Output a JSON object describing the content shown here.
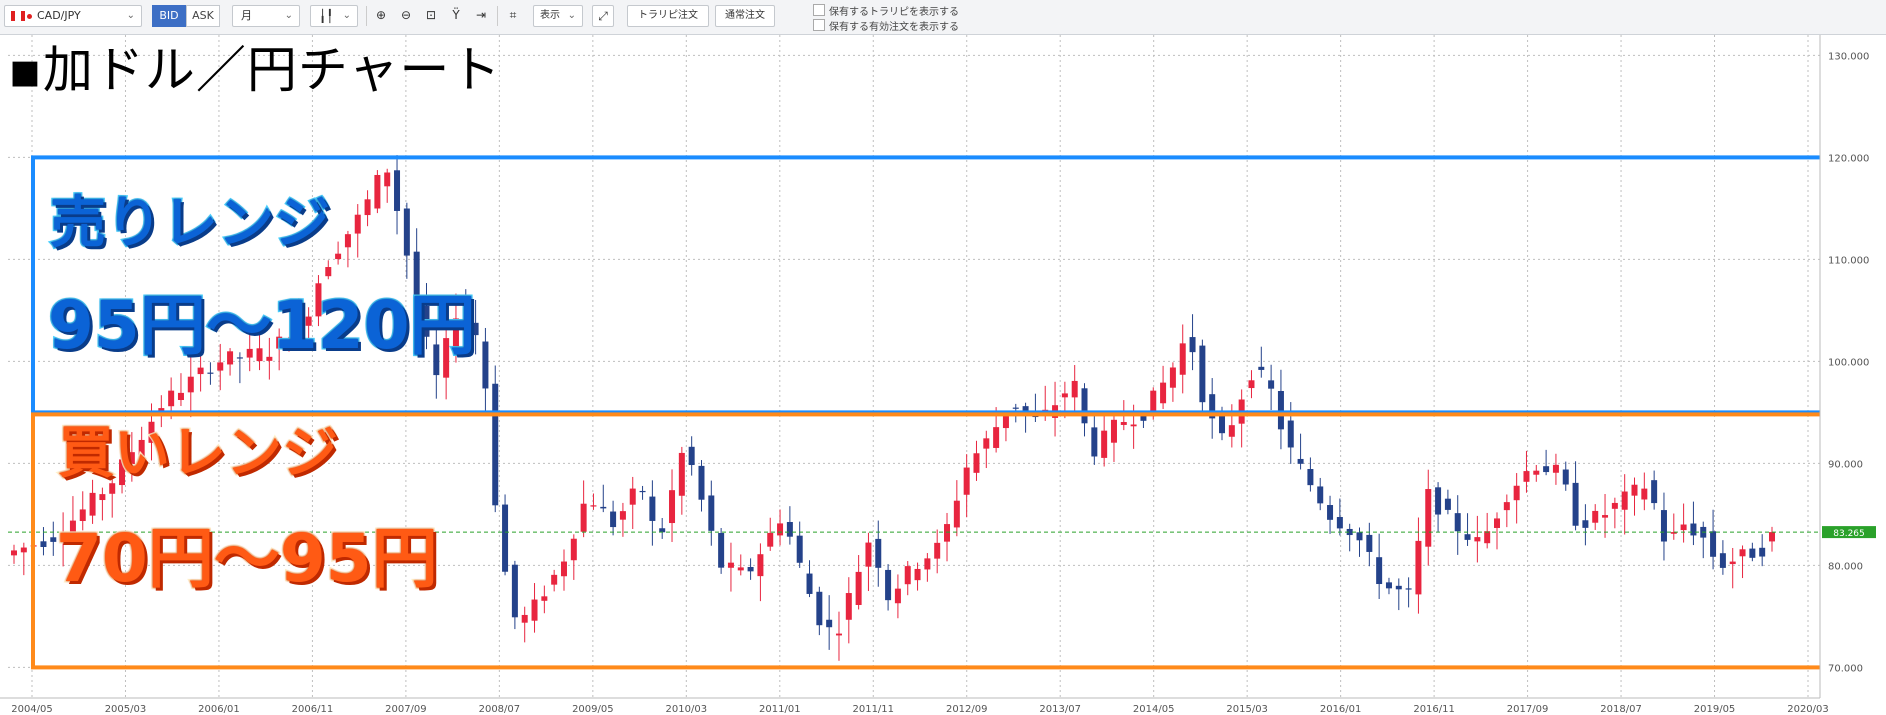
{
  "toolbar": {
    "pair": "CAD/JPY",
    "bid": "BID",
    "ask": "ASK",
    "timeframe": "月",
    "display": "表示",
    "trapi_order": "トラリピ注文",
    "normal_order": "通常注文",
    "check1": "保有するトラリピを表示する",
    "check2": "保有する有効注文を表示する"
  },
  "overlay": {
    "title": "▪加ドル／円チャート",
    "sell_range_label": "売りレンジ",
    "sell_range_value": "95円～120円",
    "buy_range_label": "買いレンジ",
    "buy_range_value": "70円～95円"
  },
  "colors": {
    "up": "#e8253f",
    "down": "#24428a",
    "sell_box": "#1a8cff",
    "buy_box": "#ff8a1a",
    "current_price_tag": "#2aa12a"
  },
  "chart_data": {
    "type": "candlestick",
    "title": "",
    "xlabel": "",
    "ylabel": "",
    "ylim": [
      67,
      132
    ],
    "y_ticks": [
      "70.000",
      "80.000",
      "90.000",
      "100.000",
      "110.000",
      "120.000",
      "130.000"
    ],
    "x_ticks": [
      "2004/05",
      "2005/03",
      "2006/01",
      "2006/11",
      "2007/09",
      "2008/07",
      "2009/05",
      "2010/03",
      "2011/01",
      "2011/11",
      "2012/09",
      "2013/07",
      "2014/05",
      "2015/03",
      "2016/01",
      "2016/11",
      "2017/09",
      "2018/07",
      "2019/05",
      "2020/03"
    ],
    "current_price": 83.265,
    "current_price_label": "83.265",
    "grid": true,
    "sell_range": [
      95,
      120
    ],
    "buy_range": [
      70,
      95
    ],
    "keyframes": [
      {
        "i": 0,
        "v": 81
      },
      {
        "i": 6,
        "v": 83
      },
      {
        "i": 12,
        "v": 88
      },
      {
        "i": 18,
        "v": 96
      },
      {
        "i": 24,
        "v": 100
      },
      {
        "i": 30,
        "v": 101
      },
      {
        "i": 34,
        "v": 104
      },
      {
        "i": 36,
        "v": 109
      },
      {
        "i": 40,
        "v": 114
      },
      {
        "i": 42,
        "v": 117
      },
      {
        "i": 43,
        "v": 120
      },
      {
        "i": 45,
        "v": 113
      },
      {
        "i": 47,
        "v": 104
      },
      {
        "i": 49,
        "v": 98
      },
      {
        "i": 51,
        "v": 105
      },
      {
        "i": 54,
        "v": 102
      },
      {
        "i": 56,
        "v": 82
      },
      {
        "i": 58,
        "v": 74
      },
      {
        "i": 60,
        "v": 76
      },
      {
        "i": 63,
        "v": 80
      },
      {
        "i": 66,
        "v": 87
      },
      {
        "i": 69,
        "v": 84
      },
      {
        "i": 72,
        "v": 88
      },
      {
        "i": 74,
        "v": 82
      },
      {
        "i": 77,
        "v": 92
      },
      {
        "i": 79,
        "v": 86
      },
      {
        "i": 81,
        "v": 80
      },
      {
        "i": 84,
        "v": 79
      },
      {
        "i": 88,
        "v": 85
      },
      {
        "i": 90,
        "v": 80
      },
      {
        "i": 92,
        "v": 75
      },
      {
        "i": 94,
        "v": 73
      },
      {
        "i": 98,
        "v": 83
      },
      {
        "i": 100,
        "v": 77
      },
      {
        "i": 103,
        "v": 80
      },
      {
        "i": 106,
        "v": 82
      },
      {
        "i": 109,
        "v": 90
      },
      {
        "i": 111,
        "v": 92
      },
      {
        "i": 114,
        "v": 96
      },
      {
        "i": 117,
        "v": 94
      },
      {
        "i": 121,
        "v": 98
      },
      {
        "i": 123,
        "v": 91
      },
      {
        "i": 126,
        "v": 94
      },
      {
        "i": 129,
        "v": 95
      },
      {
        "i": 132,
        "v": 99
      },
      {
        "i": 134,
        "v": 103
      },
      {
        "i": 136,
        "v": 95
      },
      {
        "i": 138,
        "v": 92
      },
      {
        "i": 141,
        "v": 99
      },
      {
        "i": 143,
        "v": 98
      },
      {
        "i": 145,
        "v": 92
      },
      {
        "i": 147,
        "v": 89
      },
      {
        "i": 150,
        "v": 85
      },
      {
        "i": 153,
        "v": 83
      },
      {
        "i": 156,
        "v": 78
      },
      {
        "i": 159,
        "v": 77
      },
      {
        "i": 161,
        "v": 87
      },
      {
        "i": 164,
        "v": 84
      },
      {
        "i": 167,
        "v": 82
      },
      {
        "i": 170,
        "v": 87
      },
      {
        "i": 173,
        "v": 90
      },
      {
        "i": 176,
        "v": 89
      },
      {
        "i": 178,
        "v": 84
      },
      {
        "i": 181,
        "v": 85
      },
      {
        "i": 184,
        "v": 87
      },
      {
        "i": 186,
        "v": 88
      },
      {
        "i": 188,
        "v": 82
      },
      {
        "i": 190,
        "v": 84
      },
      {
        "i": 192,
        "v": 83
      },
      {
        "i": 194,
        "v": 80
      },
      {
        "i": 197,
        "v": 81
      },
      {
        "i": 200,
        "v": 82
      }
    ],
    "n_candles": 180
  }
}
